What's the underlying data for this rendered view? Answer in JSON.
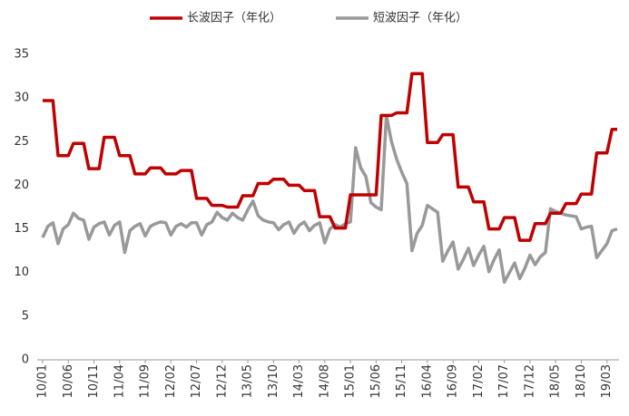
{
  "chart_data": {
    "type": "line",
    "categories": [
      "10/01",
      null,
      null,
      null,
      null,
      "10/06",
      null,
      null,
      null,
      null,
      "10/11",
      null,
      null,
      null,
      null,
      "11/04",
      null,
      null,
      null,
      null,
      "11/09",
      null,
      null,
      null,
      null,
      "12/02",
      null,
      null,
      null,
      null,
      "12/07",
      null,
      null,
      null,
      null,
      "12/12",
      null,
      null,
      null,
      null,
      "13/05",
      null,
      null,
      null,
      null,
      "13/10",
      null,
      null,
      null,
      null,
      "14/03",
      null,
      null,
      null,
      null,
      "14/08",
      null,
      null,
      null,
      null,
      "15/01",
      null,
      null,
      null,
      null,
      "15/06",
      null,
      null,
      null,
      null,
      "15/11",
      null,
      null,
      null,
      null,
      "16/04",
      null,
      null,
      null,
      null,
      "16/09",
      null,
      null,
      null,
      null,
      "17/02",
      null,
      null,
      null,
      null,
      "17/07",
      null,
      null,
      null,
      null,
      "17/12",
      null,
      null,
      null,
      null,
      "18/05",
      null,
      null,
      null,
      null,
      "18/10",
      null,
      null,
      null,
      null,
      "19/03",
      null,
      null
    ],
    "series": [
      {
        "name": "长波因子（年化）",
        "color": "#c00000",
        "values": [
          29.7,
          29.7,
          29.7,
          23.4,
          23.4,
          23.4,
          24.8,
          24.8,
          24.8,
          21.9,
          21.9,
          21.9,
          25.5,
          25.5,
          25.5,
          23.4,
          23.4,
          23.4,
          21.3,
          21.3,
          21.3,
          22.0,
          22.0,
          22.0,
          21.3,
          21.3,
          21.3,
          21.7,
          21.7,
          21.7,
          18.5,
          18.5,
          18.5,
          17.7,
          17.7,
          17.7,
          17.5,
          17.5,
          17.5,
          18.8,
          18.8,
          18.8,
          20.2,
          20.2,
          20.2,
          20.7,
          20.7,
          20.7,
          20.0,
          20.0,
          20.0,
          19.4,
          19.4,
          19.4,
          16.4,
          16.4,
          16.4,
          15.1,
          15.1,
          15.1,
          18.9,
          18.9,
          18.9,
          18.9,
          18.9,
          18.9,
          28.0,
          28.0,
          28.0,
          28.3,
          28.3,
          28.3,
          32.8,
          32.8,
          32.8,
          24.9,
          24.9,
          24.9,
          25.8,
          25.8,
          25.8,
          19.8,
          19.8,
          19.8,
          18.1,
          18.1,
          18.1,
          15.0,
          15.0,
          15.0,
          16.3,
          16.3,
          16.3,
          13.7,
          13.7,
          13.7,
          15.6,
          15.6,
          15.6,
          16.8,
          16.8,
          16.8,
          17.9,
          17.9,
          17.9,
          19.0,
          19.0,
          19.0,
          23.7,
          23.7,
          23.7,
          26.4,
          26.4
        ]
      },
      {
        "name": "短波因子（年化）",
        "color": "#999999",
        "values": [
          14.0,
          15.3,
          15.7,
          13.3,
          15.0,
          15.5,
          16.8,
          16.2,
          16.0,
          13.8,
          15.2,
          15.6,
          15.8,
          14.3,
          15.4,
          15.8,
          12.3,
          14.8,
          15.3,
          15.6,
          14.2,
          15.3,
          15.6,
          15.8,
          15.7,
          14.3,
          15.3,
          15.6,
          15.2,
          15.7,
          15.7,
          14.3,
          15.5,
          15.8,
          16.9,
          16.3,
          16.0,
          16.8,
          16.3,
          16.0,
          17.2,
          18.2,
          16.5,
          16.0,
          15.8,
          15.7,
          14.9,
          15.5,
          15.8,
          14.5,
          15.4,
          15.8,
          14.8,
          15.4,
          15.7,
          13.4,
          15.0,
          15.5,
          15.2,
          15.6,
          15.8,
          24.3,
          22.0,
          21.0,
          18.0,
          17.5,
          17.2,
          28.0,
          25.0,
          23.0,
          21.5,
          20.2,
          12.5,
          14.5,
          15.4,
          17.7,
          17.3,
          16.9,
          11.3,
          12.5,
          13.5,
          10.4,
          11.5,
          12.8,
          10.8,
          12.0,
          13.0,
          10.1,
          11.5,
          12.6,
          8.9,
          10.0,
          11.1,
          9.3,
          10.5,
          12.0,
          10.9,
          11.8,
          12.3,
          17.3,
          17.0,
          16.8,
          16.6,
          16.5,
          16.4,
          15.0,
          15.2,
          15.3,
          11.7,
          12.5,
          13.3,
          14.8,
          15.0
        ]
      }
    ],
    "ylim": [
      0,
      35
    ],
    "yticks": [
      0,
      5,
      10,
      15,
      20,
      25,
      30,
      35
    ],
    "grid": false
  }
}
